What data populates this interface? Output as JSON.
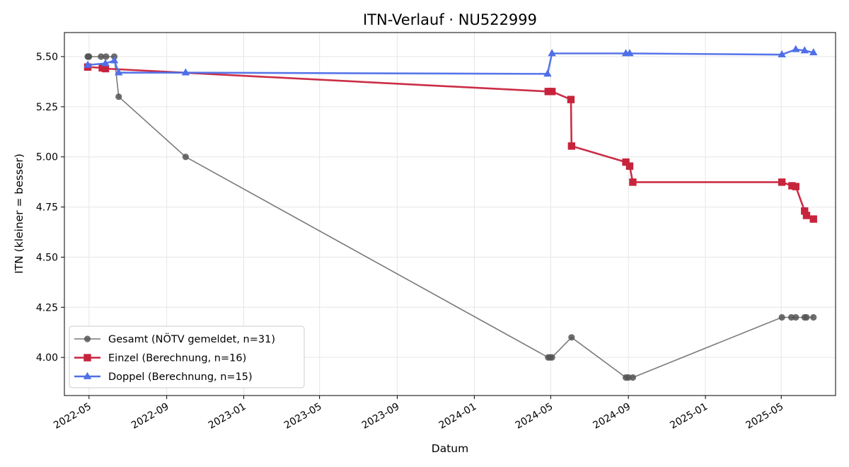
{
  "chart_data": {
    "type": "line",
    "title": "ITN-Verlauf · NU522999",
    "xlabel": "Datum",
    "ylabel": "ITN  (kleiner = besser)",
    "x_ticks": [
      "2022-05",
      "2022-09",
      "2023-01",
      "2023-05",
      "2023-09",
      "2024-01",
      "2024-05",
      "2024-09",
      "2025-01",
      "2025-05"
    ],
    "y_ticks": [
      "4.00",
      "4.25",
      "4.50",
      "4.75",
      "5.00",
      "5.25",
      "5.50"
    ],
    "ylim": [
      3.81,
      5.62
    ],
    "xlim": [
      "2022-03-23",
      "2025-07-26"
    ],
    "grid": true,
    "legend_position": "lower left",
    "series": [
      {
        "name": "Gesamt (NÖTV gemeldet, n=31)",
        "color": "#555555",
        "marker": "circle",
        "points": [
          [
            "2022-04-29",
            5.5
          ],
          [
            "2022-04-30",
            5.5
          ],
          [
            "2022-05-01",
            5.5
          ],
          [
            "2022-05-20",
            5.5
          ],
          [
            "2022-05-28",
            5.5
          ],
          [
            "2022-06-10",
            5.5
          ],
          [
            "2022-06-17",
            5.3
          ],
          [
            "2022-10-01",
            5.0
          ],
          [
            "2024-04-27",
            4.0
          ],
          [
            "2024-04-30",
            4.0
          ],
          [
            "2024-05-03",
            4.0
          ],
          [
            "2024-06-03",
            4.1
          ],
          [
            "2024-08-28",
            3.9
          ],
          [
            "2024-09-01",
            3.9
          ],
          [
            "2024-09-08",
            3.9
          ],
          [
            "2025-05-02",
            4.2
          ],
          [
            "2025-05-17",
            4.2
          ],
          [
            "2025-05-24",
            4.2
          ],
          [
            "2025-06-07",
            4.2
          ],
          [
            "2025-06-10",
            4.2
          ],
          [
            "2025-06-21",
            4.2
          ]
        ]
      },
      {
        "name": "Einzel (Berechnung, n=16)",
        "color": "#c8233c",
        "marker": "square",
        "points": [
          [
            "2022-04-29",
            5.448
          ],
          [
            "2022-05-22",
            5.444
          ],
          [
            "2022-05-27",
            5.44
          ],
          [
            "2024-04-27",
            5.326
          ],
          [
            "2024-05-03",
            5.326
          ],
          [
            "2024-06-02",
            5.286
          ],
          [
            "2024-06-03",
            5.054
          ],
          [
            "2024-08-28",
            4.974
          ],
          [
            "2024-09-03",
            4.954
          ],
          [
            "2024-09-08",
            4.874
          ],
          [
            "2025-05-02",
            4.874
          ],
          [
            "2025-05-18",
            4.856
          ],
          [
            "2025-05-24",
            4.852
          ],
          [
            "2025-06-07",
            4.73
          ],
          [
            "2025-06-10",
            4.708
          ],
          [
            "2025-06-21",
            4.69
          ]
        ]
      },
      {
        "name": "Doppel (Berechnung, n=15)",
        "color": "#4f6fe8",
        "marker": "triangle",
        "points": [
          [
            "2022-04-29",
            5.458
          ],
          [
            "2022-05-27",
            5.466
          ],
          [
            "2022-06-10",
            5.48
          ],
          [
            "2022-06-17",
            5.42
          ],
          [
            "2022-10-01",
            5.42
          ],
          [
            "2024-04-26",
            5.414
          ],
          [
            "2024-05-03",
            5.516
          ],
          [
            "2024-08-28",
            5.516
          ],
          [
            "2024-09-03",
            5.516
          ],
          [
            "2025-05-02",
            5.51
          ],
          [
            "2025-05-24",
            5.536
          ],
          [
            "2025-06-07",
            5.53
          ],
          [
            "2025-06-21",
            5.52
          ]
        ]
      }
    ]
  }
}
